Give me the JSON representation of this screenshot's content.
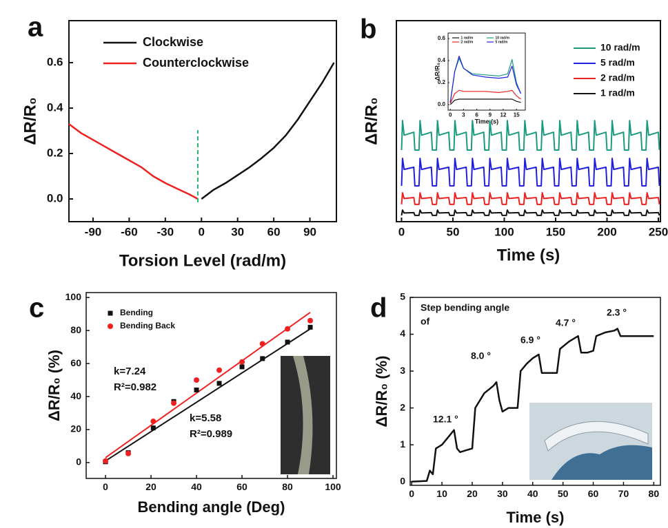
{
  "chart_data": [
    {
      "type": "line",
      "label": "a",
      "xlabel": "Torsion Level (rad/m)",
      "ylabel": "ΔR/R₀",
      "xlim": [
        -110,
        112
      ],
      "ylim": [
        -0.1,
        0.785
      ],
      "xticks": [
        -90,
        -60,
        -30,
        0,
        30,
        60,
        90
      ],
      "yticks": [
        {
          "value": 0,
          "label": "0.0"
        },
        0.2,
        0.4,
        0.6
      ],
      "legend": "upper left",
      "series": [
        {
          "name": "Clockwise",
          "color": "#111111",
          "x": [
            0,
            10,
            20,
            30,
            40,
            50,
            60,
            70,
            80,
            90,
            100,
            110
          ],
          "values": [
            0,
            0.04,
            0.07,
            0.105,
            0.14,
            0.18,
            0.225,
            0.28,
            0.35,
            0.43,
            0.51,
            0.6
          ]
        },
        {
          "name": "Counterclockwise",
          "color": "#f02020",
          "x": [
            -110,
            -100,
            -90,
            -80,
            -70,
            -60,
            -50,
            -40,
            -30,
            -20,
            -10,
            -3
          ],
          "values": [
            0.33,
            0.29,
            0.26,
            0.23,
            0.2,
            0.17,
            0.14,
            0.1,
            0.07,
            0.045,
            0.02,
            0
          ]
        }
      ]
    },
    {
      "type": "line",
      "label": "b",
      "xlabel": "Time (s)",
      "ylabel": "ΔR/R₀",
      "xlim": [
        -5,
        252
      ],
      "ylim": [
        0,
        10
      ],
      "xticks": [
        0,
        50,
        100,
        150,
        200,
        250
      ],
      "legend": "upper right",
      "x": [
        0,
        1,
        2.5,
        12,
        13,
        17,
        18,
        19.5,
        29,
        30,
        34,
        35,
        36.5,
        46,
        47,
        51,
        52,
        53.5,
        63,
        64,
        68,
        69,
        70.5,
        80,
        81,
        85,
        86,
        87.5,
        97,
        98,
        102,
        103,
        104.5,
        114,
        115,
        119,
        120,
        121.5,
        131,
        132,
        136,
        137,
        138.5,
        148,
        149,
        153,
        154,
        155.5,
        165,
        166,
        170,
        171,
        172.5,
        182,
        183,
        187,
        188,
        189.5,
        199,
        200,
        204,
        205,
        206.5,
        216,
        217,
        221,
        222,
        223.5,
        233,
        234,
        238,
        239,
        240.5,
        250,
        251
      ],
      "series": [
        {
          "name": "10 rad/m",
          "color": "#1a9b7f",
          "values": [
            3.56,
            5.03,
            4.3,
            4.45,
            3.56,
            3.56,
            5.03,
            4.3,
            4.45,
            3.56,
            3.56,
            5.03,
            4.3,
            4.45,
            3.56,
            3.56,
            5.03,
            4.3,
            4.45,
            3.56,
            3.56,
            5.03,
            4.3,
            4.45,
            3.56,
            3.56,
            5.03,
            4.3,
            4.45,
            3.56,
            3.56,
            5.03,
            4.3,
            4.45,
            3.56,
            3.56,
            5.03,
            4.3,
            4.45,
            3.56,
            3.56,
            5.03,
            4.3,
            4.45,
            3.56,
            3.56,
            5.03,
            4.3,
            4.45,
            3.56,
            3.56,
            5.03,
            4.3,
            4.45,
            3.56,
            3.56,
            5.03,
            4.3,
            4.45,
            3.56,
            3.56,
            5.03,
            4.3,
            4.45,
            3.56,
            3.56,
            5.03,
            4.3,
            4.45,
            3.56,
            3.56,
            5.03,
            4.3,
            4.45,
            3.56
          ]
        },
        {
          "name": "5   rad/m",
          "color": "#1f1fe0",
          "values": [
            1.78,
            3.15,
            2.6,
            2.71,
            1.78,
            1.78,
            3.15,
            2.6,
            2.71,
            1.78,
            1.78,
            3.15,
            2.6,
            2.71,
            1.78,
            1.78,
            3.15,
            2.6,
            2.71,
            1.78,
            1.78,
            3.15,
            2.6,
            2.71,
            1.78,
            1.78,
            3.15,
            2.6,
            2.71,
            1.78,
            1.78,
            3.15,
            2.6,
            2.71,
            1.78,
            1.78,
            3.15,
            2.6,
            2.71,
            1.78,
            1.78,
            3.15,
            2.6,
            2.71,
            1.78,
            1.78,
            3.15,
            2.6,
            2.71,
            1.78,
            1.78,
            3.15,
            2.6,
            2.71,
            1.78,
            1.78,
            3.15,
            2.6,
            2.71,
            1.78,
            1.78,
            3.15,
            2.6,
            2.71,
            1.78,
            1.78,
            3.15,
            2.6,
            2.71,
            1.78,
            1.78,
            3.15,
            2.6,
            2.71,
            1.78
          ]
        },
        {
          "name": "2   rad/m",
          "color": "#f02020",
          "values": [
            0.86,
            1.44,
            1.15,
            1.2,
            0.86,
            0.86,
            1.44,
            1.15,
            1.2,
            0.86,
            0.86,
            1.44,
            1.15,
            1.2,
            0.86,
            0.86,
            1.44,
            1.15,
            1.2,
            0.86,
            0.86,
            1.44,
            1.15,
            1.2,
            0.86,
            0.86,
            1.44,
            1.15,
            1.2,
            0.86,
            0.86,
            1.44,
            1.15,
            1.2,
            0.86,
            0.86,
            1.44,
            1.15,
            1.2,
            0.86,
            0.86,
            1.44,
            1.15,
            1.2,
            0.86,
            0.86,
            1.44,
            1.15,
            1.2,
            0.86,
            0.86,
            1.44,
            1.15,
            1.2,
            0.86,
            0.86,
            1.44,
            1.15,
            1.2,
            0.86,
            0.86,
            1.44,
            1.15,
            1.2,
            0.86,
            0.86,
            1.44,
            1.15,
            1.2,
            0.86,
            0.86,
            1.44,
            1.15,
            1.2,
            0.86
          ]
        },
        {
          "name": "1   rad/m",
          "color": "#111111",
          "values": [
            0.31,
            0.58,
            0.43,
            0.45,
            0.31,
            0.31,
            0.58,
            0.43,
            0.45,
            0.31,
            0.31,
            0.58,
            0.43,
            0.45,
            0.31,
            0.31,
            0.58,
            0.43,
            0.45,
            0.31,
            0.31,
            0.58,
            0.43,
            0.45,
            0.31,
            0.31,
            0.58,
            0.43,
            0.45,
            0.31,
            0.31,
            0.58,
            0.43,
            0.45,
            0.31,
            0.31,
            0.58,
            0.43,
            0.45,
            0.31,
            0.31,
            0.58,
            0.43,
            0.45,
            0.31,
            0.31,
            0.58,
            0.43,
            0.45,
            0.31,
            0.31,
            0.58,
            0.43,
            0.45,
            0.31,
            0.31,
            0.58,
            0.43,
            0.45,
            0.31,
            0.31,
            0.58,
            0.43,
            0.45,
            0.31,
            0.31,
            0.58,
            0.43,
            0.45,
            0.31,
            0.31,
            0.58,
            0.43,
            0.45,
            0.31
          ]
        }
      ]
    },
    {
      "type": "line",
      "xlabel": "Time (s)",
      "ylabel": "ΔR/R₀",
      "xlim": [
        -0.5,
        17
      ],
      "ylim": [
        -0.05,
        0.65
      ],
      "xticks": [
        0,
        3,
        6,
        9,
        12,
        15
      ],
      "yticks": [
        {
          "value": 0,
          "label": "0.0"
        },
        0.2,
        0.4,
        0.6
      ],
      "legend": "upper left",
      "x": [
        0,
        1,
        2,
        3,
        5,
        8,
        11,
        13,
        14,
        15,
        16
      ],
      "series": [
        {
          "name": "1 rad/m",
          "color": "#111111",
          "values": [
            0,
            0.04,
            0.05,
            0.05,
            0.05,
            0.05,
            0.05,
            0.05,
            0.05,
            0.03,
            0.02
          ]
        },
        {
          "name": "10 rad/m",
          "color": "#1a9b7f",
          "values": [
            0.02,
            0.3,
            0.42,
            0.33,
            0.28,
            0.27,
            0.26,
            0.28,
            0.41,
            0.2,
            0.1
          ]
        },
        {
          "name": "2 rad/m",
          "color": "#f02020",
          "values": [
            0.01,
            0.1,
            0.13,
            0.12,
            0.12,
            0.12,
            0.11,
            0.12,
            0.13,
            0.08,
            0.05
          ]
        },
        {
          "name": "5 rad/m",
          "color": "#1f1fe0",
          "values": [
            0.02,
            0.3,
            0.44,
            0.33,
            0.27,
            0.25,
            0.24,
            0.25,
            0.35,
            0.18,
            0.1
          ]
        }
      ]
    },
    {
      "type": "scatter",
      "label": "c",
      "xlabel": "Bending angle (Deg)",
      "ylabel": "ΔR/R₀ (%)",
      "xlim": [
        -8.5,
        101.5
      ],
      "ylim": [
        -9.6,
        103
      ],
      "xticks": [
        0,
        20,
        40,
        60,
        80,
        100
      ],
      "yticks": [
        0,
        20,
        40,
        60,
        80,
        100
      ],
      "legend": "upper left",
      "series": [
        {
          "name": "Bending",
          "color": "#111111",
          "marker": "square",
          "x": [
            0,
            10,
            21,
            30,
            40,
            50,
            60,
            69,
            80,
            90
          ],
          "values": [
            0.5,
            6,
            21,
            37,
            44,
            48,
            58,
            63,
            73,
            82
          ],
          "fit_x": [
            0,
            90
          ],
          "fit": [
            1,
            81
          ],
          "fit_label": [
            "k=5.58",
            "R²=0.989"
          ]
        },
        {
          "name": "Bending Back",
          "color": "#f02020",
          "marker": "circle",
          "x": [
            0,
            10,
            21,
            30,
            40,
            50,
            60,
            69,
            80,
            90
          ],
          "values": [
            1,
            5.5,
            25,
            36,
            50,
            56,
            61,
            72,
            81,
            86
          ],
          "fit_x": [
            0,
            90
          ],
          "fit": [
            3,
            91
          ],
          "fit_label": [
            "k=7.24",
            "R²=0.982"
          ]
        }
      ]
    },
    {
      "type": "line",
      "label": "d",
      "xlabel": "Time (s)",
      "ylabel": "ΔR/R₀ (%)",
      "xlim": [
        -0.5,
        82.2
      ],
      "ylim": [
        -0.1,
        5
      ],
      "xticks": [
        0,
        10,
        20,
        30,
        40,
        50,
        60,
        70,
        80
      ],
      "yticks": [
        0,
        1,
        2,
        3,
        4,
        5
      ],
      "annotations": [
        "Step bending angle",
        "of",
        "12.1 °",
        "8.0 °",
        "6.9 °",
        "4.7 °",
        "2.3 °"
      ],
      "series": [
        {
          "color": "#111111",
          "x": [
            0,
            5,
            6,
            7,
            8,
            10,
            12,
            14,
            15,
            16,
            18,
            20,
            21,
            24,
            27,
            28,
            29,
            30,
            32,
            35,
            36,
            38,
            40,
            42,
            43,
            45,
            48,
            49,
            52,
            55,
            56,
            58,
            60,
            61,
            64,
            67,
            68,
            69,
            72,
            80
          ],
          "values": [
            0,
            0.02,
            0.3,
            0.2,
            0.9,
            1,
            1.2,
            1.4,
            0.9,
            0.8,
            0.85,
            0.9,
            2,
            2.4,
            2.6,
            2.7,
            2.2,
            1.9,
            2,
            2,
            3,
            3.2,
            3.35,
            3.45,
            2.95,
            2.95,
            2.95,
            3.6,
            3.8,
            3.95,
            3.5,
            3.5,
            3.55,
            3.95,
            4.05,
            4.1,
            4.15,
            3.95,
            3.95,
            3.95
          ]
        }
      ]
    }
  ]
}
